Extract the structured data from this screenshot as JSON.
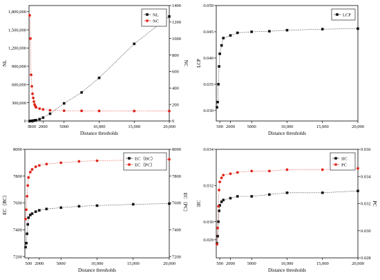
{
  "colors": {
    "black": "#111111",
    "red": "#e0261c"
  },
  "chart_data": [
    {
      "type": "scatter",
      "xlabel": "Distance thresholds",
      "ylabel": "NL",
      "y2label": "NC",
      "xlim": [
        0,
        20000
      ],
      "ylim": [
        0,
        1900000
      ],
      "y2lim": [
        0,
        1400
      ],
      "xticks": [
        "0",
        "500",
        "2000",
        "5000",
        "10,000",
        "15,000",
        "20,000"
      ],
      "yticks": [
        "0",
        "300,000",
        "600,000",
        "900,000",
        "1,200,000",
        "1,500,000",
        "1,800,000"
      ],
      "y2ticks": [
        "0",
        "200",
        "400",
        "600",
        "800",
        "1000",
        "1200",
        "1400"
      ],
      "legend_position": "top-right",
      "series": [
        {
          "name": "NL",
          "axis": "left",
          "marker": "square",
          "color": "black",
          "x": [
            100,
            200,
            300,
            400,
            500,
            600,
            700,
            800,
            900,
            1000,
            1500,
            2000,
            3000,
            5000,
            7500,
            10000,
            15000,
            20000
          ],
          "y": [
            100,
            800,
            1500,
            2500,
            3500,
            5000,
            7000,
            9000,
            11000,
            13000,
            30000,
            55000,
            120000,
            290000,
            470000,
            710000,
            1270000,
            1720000
          ]
        },
        {
          "name": "NC",
          "axis": "right",
          "marker": "circle",
          "color": "red",
          "x": [
            100,
            200,
            300,
            400,
            500,
            600,
            700,
            800,
            900,
            1000,
            1500,
            2000,
            3000,
            5000,
            7500,
            10000,
            15000,
            20000
          ],
          "y": [
            1280,
            1000,
            560,
            420,
            330,
            280,
            235,
            200,
            180,
            165,
            150,
            140,
            130,
            125,
            123,
            122,
            121,
            120
          ]
        }
      ]
    },
    {
      "type": "scatter",
      "xlabel": "Distance thresholds",
      "ylabel": "LCP",
      "xlim": [
        0,
        20000
      ],
      "ylim": [
        0.028,
        0.05
      ],
      "xticks": [
        "500",
        "2000",
        "5000",
        "10,000",
        "15,000",
        "20,000"
      ],
      "yticks": [
        "0.030",
        "0.035",
        "0.040",
        "0.045",
        "0.050"
      ],
      "legend_position": "top-right",
      "series": [
        {
          "name": "LCP",
          "axis": "left",
          "marker": "square",
          "color": "black",
          "x": [
            100,
            200,
            300,
            400,
            500,
            750,
            1000,
            2000,
            3000,
            5000,
            7500,
            10000,
            15000,
            20000
          ],
          "y": [
            0.0306,
            0.0316,
            0.035,
            0.0384,
            0.0408,
            0.0424,
            0.0438,
            0.0443,
            0.0448,
            0.045,
            0.0451,
            0.0453,
            0.0455,
            0.0456
          ]
        }
      ]
    },
    {
      "type": "scatter",
      "xlabel": "Distance thresholds",
      "ylabel": "EC（BC）",
      "y2label": "EC（PC）",
      "xlim": [
        0,
        20000
      ],
      "ylim": [
        7190,
        8000
      ],
      "y2lim": [
        7190,
        8000
      ],
      "xticks": [
        "500",
        "2000",
        "5000",
        "10,000",
        "15,000",
        "20,000"
      ],
      "yticks": [
        "7200",
        "7400",
        "7600",
        "7800",
        "8000"
      ],
      "y2ticks": [
        "7200",
        "7400",
        "7600",
        "7800",
        "8000"
      ],
      "legend_position": "top-right",
      "series": [
        {
          "name": "EC（BC）",
          "axis": "left",
          "marker": "square",
          "color": "black",
          "x": [
            100,
            200,
            300,
            400,
            500,
            750,
            1000,
            1500,
            2000,
            3000,
            5000,
            7500,
            10000,
            15000,
            20000
          ],
          "y": [
            7270,
            7300,
            7370,
            7440,
            7490,
            7510,
            7520,
            7535,
            7545,
            7555,
            7565,
            7575,
            7580,
            7590,
            7595
          ]
        },
        {
          "name": "EC（PC）",
          "axis": "right",
          "marker": "circle",
          "color": "red",
          "x": [
            100,
            200,
            300,
            400,
            500,
            750,
            1000,
            1500,
            2000,
            3000,
            5000,
            7500,
            10000,
            15000,
            20000
          ],
          "y": [
            7480,
            7550,
            7650,
            7730,
            7790,
            7830,
            7850,
            7870,
            7880,
            7890,
            7900,
            7910,
            7915,
            7920,
            7925
          ]
        }
      ]
    },
    {
      "type": "scatter",
      "xlabel": "Distance thresholds",
      "ylabel": "IIC",
      "y2label": "PC",
      "xlim": [
        0,
        20000
      ],
      "ylim": [
        0.028,
        0.034
      ],
      "y2lim": [
        0.028,
        0.036
      ],
      "xticks": [
        "500",
        "2000",
        "5000",
        "10,000",
        "15,000",
        "20,000"
      ],
      "yticks": [
        "0.029",
        "0.030",
        "0.032",
        "0.034"
      ],
      "y2ticks": [
        "0.028",
        "0.030",
        "0.032",
        "0.034",
        "0.036"
      ],
      "legend_position": "top-right",
      "series": [
        {
          "name": "IIC",
          "axis": "left",
          "marker": "square",
          "color": "black",
          "x": [
            100,
            200,
            300,
            400,
            500,
            750,
            1000,
            2000,
            3000,
            5000,
            7500,
            10000,
            15000,
            20000
          ],
          "y": [
            0.0288,
            0.0292,
            0.03,
            0.0306,
            0.0309,
            0.0311,
            0.0312,
            0.0313,
            0.0314,
            0.0314,
            0.0315,
            0.0316,
            0.0316,
            0.0317
          ]
        },
        {
          "name": "PC",
          "axis": "right",
          "marker": "circle",
          "color": "red",
          "x": [
            100,
            200,
            300,
            400,
            500,
            750,
            1000,
            2000,
            3000,
            5000,
            7500,
            10000,
            15000,
            20000
          ],
          "y": [
            0.029,
            0.0302,
            0.0318,
            0.033,
            0.0336,
            0.0339,
            0.0341,
            0.0342,
            0.0343,
            0.0344,
            0.0344,
            0.0345,
            0.0345,
            0.0346
          ]
        }
      ]
    }
  ]
}
